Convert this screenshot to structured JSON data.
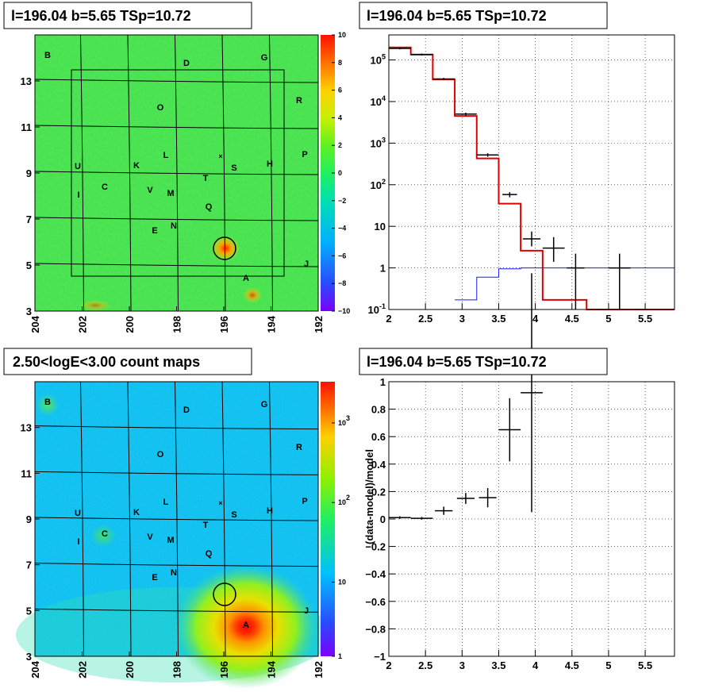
{
  "panels": {
    "top_left_title": "l=196.04 b=5.65 TSp=10.72",
    "top_right_title": "l=196.04 b=5.65 TSp=10.72",
    "bottom_left_title": "2.50<logE<3.00 count maps",
    "bottom_right_title": "l=196.04 b=5.65 TSp=10.72"
  },
  "colors": {
    "model_red": "#e00000",
    "model_blue": "#1a1aff",
    "data_black": "#000000"
  },
  "chart_data": [
    {
      "type": "heatmap",
      "title": "l=196.04 b=5.65 TSp=10.72",
      "x_ticks": [
        "204",
        "202",
        "200",
        "198",
        "196",
        "194",
        "192"
      ],
      "y_ticks": [
        "3",
        "5",
        "7",
        "9",
        "11",
        "13"
      ],
      "xlim": [
        204,
        192
      ],
      "ylim": [
        3,
        15
      ],
      "colorbar_ticks": [
        "10",
        "8",
        "6",
        "4",
        "2",
        "0",
        "−2",
        "−4",
        "−6",
        "−8",
        "−10"
      ],
      "colorbar_range": [
        -10,
        10
      ],
      "source_labels": [
        "B",
        "D",
        "G",
        "O",
        "R",
        "L",
        "P",
        "U",
        "K",
        "S",
        "H",
        "I",
        "C",
        "V",
        "M",
        "T",
        "Q",
        "E",
        "N",
        "J",
        "A"
      ]
    },
    {
      "type": "line",
      "title": "l=196.04 b=5.65 TSp=10.72",
      "log_y": true,
      "xlim": [
        2,
        5.9
      ],
      "ylim": [
        0.1,
        400000
      ],
      "x_ticks": [
        "2",
        "2.5",
        "3",
        "3.5",
        "4",
        "4.5",
        "5",
        "5.5"
      ],
      "y_ticks": [
        "10^{-1}",
        "1",
        "10",
        "10^{2}",
        "10^{3}",
        "10^{4}",
        "10^{5}"
      ],
      "series": [
        {
          "style": "step",
          "color": "red",
          "edges": [
            2,
            2.3,
            2.6,
            2.9,
            3.2,
            3.5,
            3.8,
            4.1,
            4.4,
            4.7,
            5.9
          ],
          "values": [
            200000,
            135000,
            34000,
            4500,
            430,
            35,
            2.6,
            0.17,
            0.17,
            0.1
          ]
        },
        {
          "style": "step",
          "color": "blue",
          "edges": [
            2.9,
            3.2,
            3.5,
            3.8,
            4.1,
            4.4,
            4.7,
            5.9
          ],
          "values": [
            0.17,
            0.6,
            0.95,
            1.0,
            1.0,
            1.0,
            1.0
          ]
        },
        {
          "style": "errorbar",
          "color": "black",
          "points": [
            {
              "x": 2.15,
              "y": 190000,
              "xerr": 0.15,
              "ylo": 180000,
              "yhi": 200000
            },
            {
              "x": 2.45,
              "y": 135000,
              "xerr": 0.15,
              "ylo": 128000,
              "yhi": 142000
            },
            {
              "x": 2.75,
              "y": 35000,
              "xerr": 0.15,
              "ylo": 33000,
              "yhi": 37000
            },
            {
              "x": 3.05,
              "y": 5000,
              "xerr": 0.15,
              "ylo": 4600,
              "yhi": 5400
            },
            {
              "x": 3.35,
              "y": 520,
              "xerr": 0.15,
              "ylo": 470,
              "yhi": 570
            },
            {
              "x": 3.65,
              "y": 58,
              "xerr": 0.1,
              "ylo": 50,
              "yhi": 66
            },
            {
              "x": 3.95,
              "y": 5,
              "xerr": 0.12,
              "ylo": 3.3,
              "yhi": 7.5
            },
            {
              "x": 4.25,
              "y": 3,
              "xerr": 0.15,
              "ylo": 1.4,
              "yhi": 5.5
            },
            {
              "x": 4.55,
              "y": 1,
              "xerr": 0.12,
              "ylo": 0.1,
              "yhi": 2.2
            },
            {
              "x": 5.15,
              "y": 1,
              "xerr": 0.15,
              "ylo": 0.1,
              "yhi": 2.2
            }
          ]
        }
      ]
    },
    {
      "type": "heatmap",
      "title": "2.50<logE<3.00 count maps",
      "log_z": true,
      "x_ticks": [
        "204",
        "202",
        "200",
        "198",
        "196",
        "194",
        "192"
      ],
      "y_ticks": [
        "3",
        "5",
        "7",
        "9",
        "11",
        "13"
      ],
      "xlim": [
        204,
        192
      ],
      "ylim": [
        3,
        15
      ],
      "colorbar_ticks": [
        "10^{3}",
        "10^{2}",
        "10",
        "1"
      ],
      "source_labels": [
        "B",
        "D",
        "G",
        "O",
        "R",
        "L",
        "P",
        "U",
        "K",
        "S",
        "H",
        "I",
        "C",
        "V",
        "M",
        "T",
        "Q",
        "E",
        "N",
        "J",
        "A"
      ]
    },
    {
      "type": "scatter",
      "title": "l=196.04 b=5.65 TSp=10.72",
      "ylabel": "(data-model)/model",
      "xlim": [
        2,
        5.9
      ],
      "ylim": [
        -1,
        1
      ],
      "x_ticks": [
        "2",
        "2.5",
        "3",
        "3.5",
        "4",
        "4.5",
        "5",
        "5.5"
      ],
      "y_ticks": [
        "−1",
        "−0.8",
        "−0.6",
        "−0.4",
        "−0.2",
        "0",
        "0.2",
        "0.4",
        "0.6",
        "0.8",
        "1"
      ],
      "points": [
        {
          "x": 2.15,
          "y": 0.01,
          "xerr": 0.15,
          "yerr": 0.01
        },
        {
          "x": 2.45,
          "y": 0.005,
          "xerr": 0.15,
          "yerr": 0.01
        },
        {
          "x": 2.75,
          "y": 0.06,
          "xerr": 0.12,
          "yerr": 0.03
        },
        {
          "x": 3.05,
          "y": 0.15,
          "xerr": 0.12,
          "yerr": 0.04
        },
        {
          "x": 3.35,
          "y": 0.155,
          "xerr": 0.12,
          "yerr": 0.07
        },
        {
          "x": 3.65,
          "y": 0.65,
          "xerr": 0.15,
          "yerr": 0.23
        },
        {
          "x": 3.95,
          "y": 0.92,
          "xerr": 0.15,
          "yerr": 0.87
        }
      ]
    }
  ]
}
